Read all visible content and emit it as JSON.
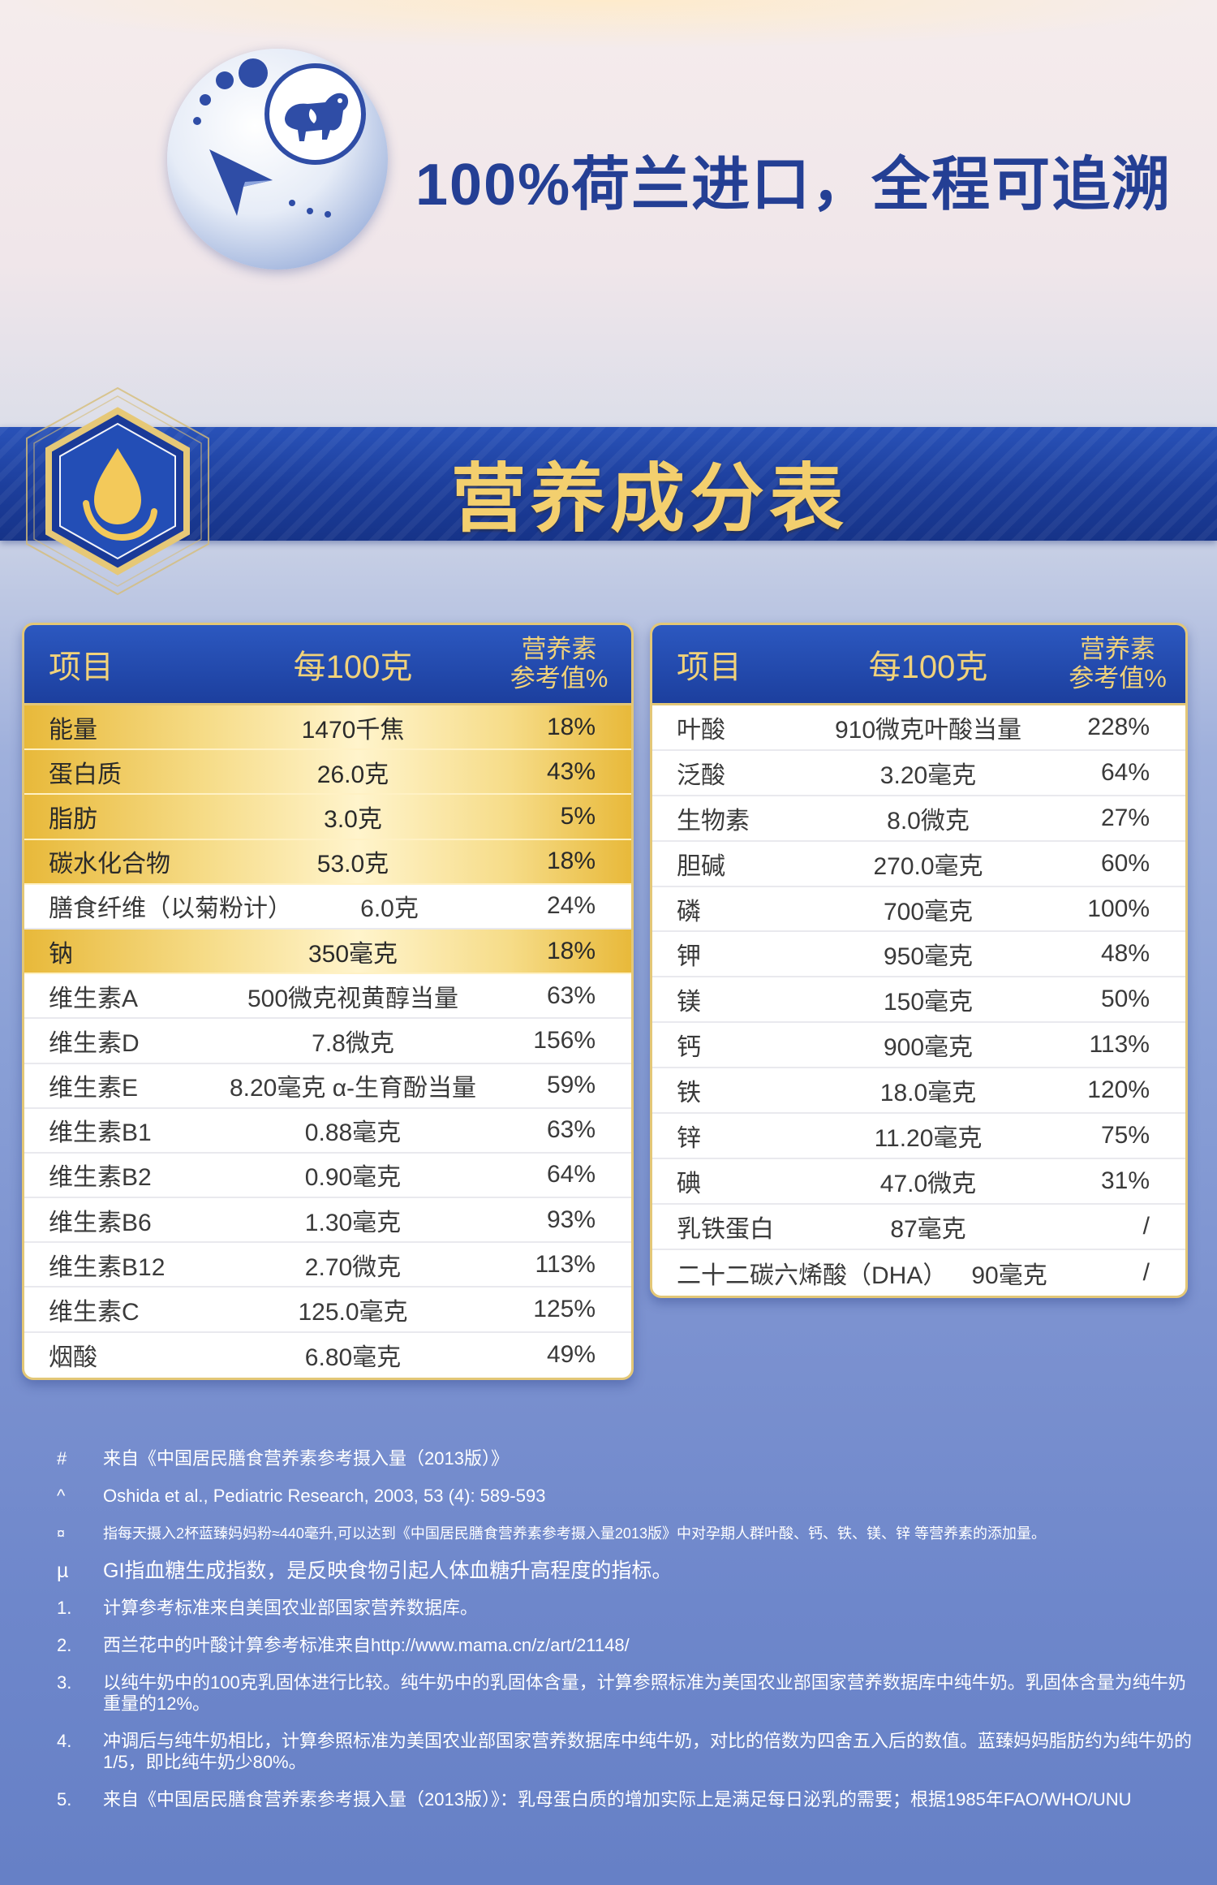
{
  "header": {
    "headline": "100%荷兰进口，全程可追溯"
  },
  "section": {
    "title": "营养成分表"
  },
  "left_table": {
    "col_item": "项目",
    "col_per100": "每100克",
    "col_nrv_line1": "营养素",
    "col_nrv_line2": "参考值%",
    "rows": [
      {
        "name": "能量",
        "value": "1470千焦",
        "pct": "18%",
        "highlight": true
      },
      {
        "name": "蛋白质",
        "value": "26.0克",
        "pct": "43%",
        "highlight": true
      },
      {
        "name": "脂肪",
        "value": "3.0克",
        "pct": "5%",
        "highlight": true
      },
      {
        "name": "碳水化合物",
        "value": "53.0克",
        "pct": "18%",
        "highlight": true
      },
      {
        "name": "膳食纤维（以菊粉计）",
        "value": "6.0克",
        "pct": "24%",
        "highlight": false
      },
      {
        "name": "钠",
        "value": "350毫克",
        "pct": "18%",
        "highlight": true
      },
      {
        "name": "维生素A",
        "value": "500微克视黄醇当量",
        "pct": "63%",
        "highlight": false
      },
      {
        "name": "维生素D",
        "value": "7.8微克",
        "pct": "156%",
        "highlight": false
      },
      {
        "name": "维生素E",
        "value": "8.20毫克 α-生育酚当量",
        "pct": "59%",
        "highlight": false
      },
      {
        "name": "维生素B1",
        "value": "0.88毫克",
        "pct": "63%",
        "highlight": false
      },
      {
        "name": "维生素B2",
        "value": "0.90毫克",
        "pct": "64%",
        "highlight": false
      },
      {
        "name": "维生素B6",
        "value": "1.30毫克",
        "pct": "93%",
        "highlight": false
      },
      {
        "name": "维生素B12",
        "value": "2.70微克",
        "pct": "113%",
        "highlight": false
      },
      {
        "name": "维生素C",
        "value": "125.0毫克",
        "pct": "125%",
        "highlight": false
      },
      {
        "name": "烟酸",
        "value": "6.80毫克",
        "pct": "49%",
        "highlight": false
      }
    ]
  },
  "right_table": {
    "col_item": "项目",
    "col_per100": "每100克",
    "col_nrv_line1": "营养素",
    "col_nrv_line2": "参考值%",
    "rows": [
      {
        "name": "叶酸",
        "value": "910微克叶酸当量",
        "pct": "228%"
      },
      {
        "name": "泛酸",
        "value": "3.20毫克",
        "pct": "64%"
      },
      {
        "name": "生物素",
        "value": "8.0微克",
        "pct": "27%"
      },
      {
        "name": "胆碱",
        "value": "270.0毫克",
        "pct": "60%"
      },
      {
        "name": "磷",
        "value": "700毫克",
        "pct": "100%"
      },
      {
        "name": "钾",
        "value": "950毫克",
        "pct": "48%"
      },
      {
        "name": "镁",
        "value": "150毫克",
        "pct": "50%"
      },
      {
        "name": "钙",
        "value": "900毫克",
        "pct": "113%"
      },
      {
        "name": "铁",
        "value": "18.0毫克",
        "pct": "120%"
      },
      {
        "name": "锌",
        "value": "11.20毫克",
        "pct": "75%"
      },
      {
        "name": "碘",
        "value": "47.0微克",
        "pct": "31%"
      },
      {
        "name": "乳铁蛋白",
        "value": "87毫克",
        "pct": "/"
      },
      {
        "name": "二十二碳六烯酸（DHA）",
        "value": "90毫克",
        "pct": "/"
      }
    ]
  },
  "notes": [
    {
      "mark": "#",
      "text": "来自《中国居民膳食营养素参考摄入量（2013版）》",
      "size": "normal"
    },
    {
      "mark": "^",
      "text": "Oshida et al., Pediatric Research, 2003, 53 (4): 589-593",
      "size": "normal"
    },
    {
      "mark": "¤",
      "text": "指每天摄入2杯蓝臻妈妈粉≈440毫升,可以达到《中国居民膳食营养素参考摄入量2013版》中对孕期人群叶酸、钙、铁、镁、锌 等营养素的添加量。",
      "size": "small"
    },
    {
      "mark": "µ",
      "text": "GI指血糖生成指数，是反映食物引起人体血糖升高程度的指标。",
      "size": "big"
    },
    {
      "mark": "1.",
      "text": "计算参考标准来自美国农业部国家营养数据库。",
      "size": "normal"
    },
    {
      "mark": "2.",
      "text": "西兰花中的叶酸计算参考标准来自http://www.mama.cn/z/art/21148/",
      "size": "normal"
    },
    {
      "mark": "3.",
      "text": "以纯牛奶中的100克乳固体进行比较。纯牛奶中的乳固体含量，计算参照标准为美国农业部国家营养数据库中纯牛奶。乳固体含量为纯牛奶重量的12%。",
      "size": "normal"
    },
    {
      "mark": "4.",
      "text": "冲调后与纯牛奶相比，计算参照标准为美国农业部国家营养数据库中纯牛奶，对比的倍数为四舍五入后的数值。蓝臻妈妈脂肪约为纯牛奶的1/5，即比纯牛奶少80%。",
      "size": "normal"
    },
    {
      "mark": "5.",
      "text": "来自《中国居民膳食营养素参考摄入量（2013版）》：乳母蛋白质的增加实际上是满足每日泌乳的需要；根据1985年FAO/WHO/UNU",
      "size": "normal"
    }
  ]
}
